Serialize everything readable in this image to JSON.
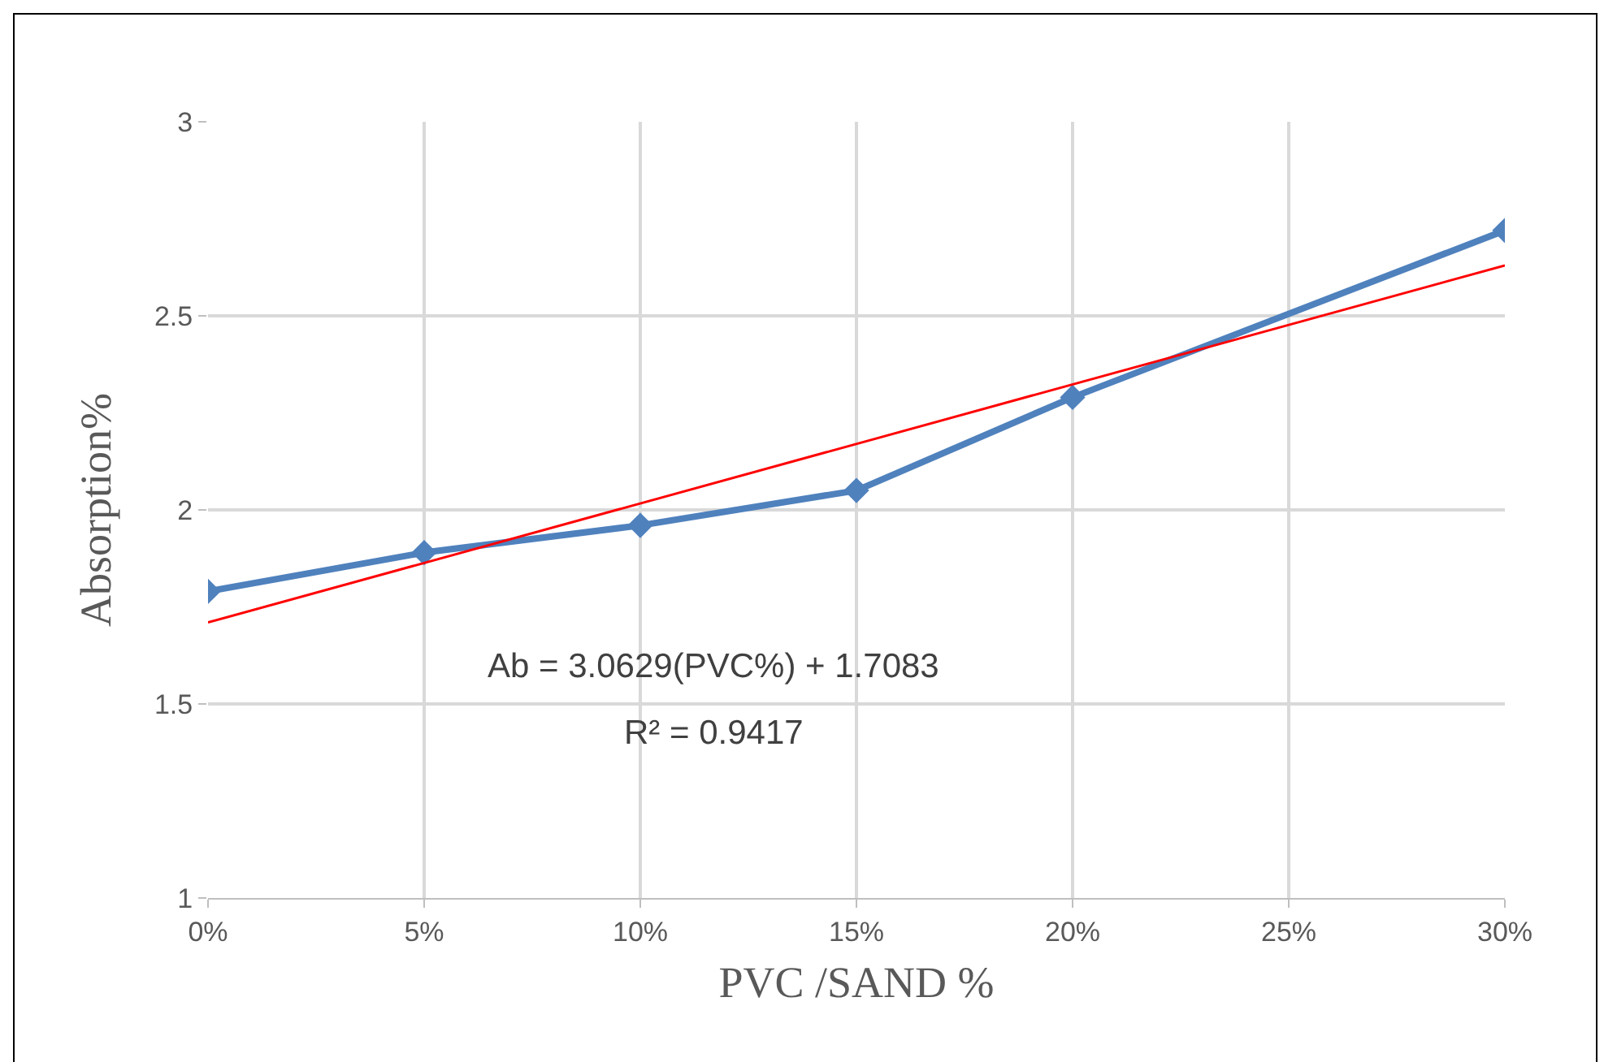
{
  "chart_data": {
    "type": "line",
    "xlabel": "PVC /SAND %",
    "ylabel": "Absorption%",
    "xlim": [
      0,
      0.3
    ],
    "xticks": [
      {
        "value": 0,
        "label": "0%"
      },
      {
        "value": 0.05,
        "label": "5%"
      },
      {
        "value": 0.1,
        "label": "10%"
      },
      {
        "value": 0.15,
        "label": "15%"
      },
      {
        "value": 0.2,
        "label": "20%"
      },
      {
        "value": 0.25,
        "label": "25%"
      },
      {
        "value": 0.3,
        "label": "30%"
      }
    ],
    "ylim": [
      1,
      3
    ],
    "yticks": [
      1,
      1.5,
      2,
      2.5,
      3
    ],
    "grid": true,
    "series": [
      {
        "color": "#4f81bd",
        "marker": "diamond",
        "line_style": "solid",
        "x": [
          0,
          0.05,
          0.1,
          0.15,
          0.2,
          0.3
        ],
        "values": [
          1.79,
          1.89,
          1.96,
          2.05,
          2.29,
          2.72
        ]
      },
      {
        "color": "#ff0000",
        "marker": "none",
        "line_style": "solid",
        "x": [
          0,
          0.3
        ],
        "values": [
          1.71,
          2.63
        ]
      }
    ],
    "annotations": [
      "Ab = 3.0629(PVC%) + 1.7083",
      "R² = 0.9417"
    ]
  }
}
